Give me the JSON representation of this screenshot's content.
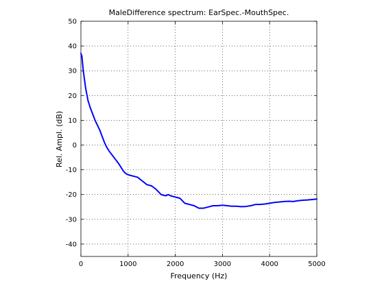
{
  "chart_data": {
    "type": "line",
    "title": "MaleDifference spectrum: EarSpec.-MouthSpec.",
    "xlabel": "Frequency (Hz)",
    "ylabel": "Rel. Ampl. (dB)",
    "xlim": [
      0,
      5000
    ],
    "ylim": [
      -45,
      50
    ],
    "xticks": [
      0,
      1000,
      2000,
      3000,
      4000,
      5000
    ],
    "yticks": [
      -40,
      -30,
      -20,
      -10,
      0,
      10,
      20,
      30,
      40,
      50
    ],
    "grid": true,
    "line_color": "#0000ff",
    "series": [
      {
        "x": [
          0,
          20,
          50,
          100,
          150,
          200,
          250,
          300,
          400,
          500,
          550,
          600,
          700,
          800,
          900,
          950,
          1000,
          1100,
          1200,
          1300,
          1400,
          1500,
          1600,
          1700,
          1800,
          1850,
          1900,
          2000,
          2100,
          2200,
          2300,
          2400,
          2500,
          2600,
          2700,
          2800,
          2900,
          3000,
          3100,
          3200,
          3300,
          3400,
          3500,
          3600,
          3700,
          3800,
          3900,
          4000,
          4100,
          4200,
          4300,
          4400,
          4500,
          4600,
          4700,
          4800,
          4900,
          5000
        ],
        "y": [
          37,
          36,
          30,
          23,
          18,
          15,
          12.5,
          10,
          6,
          1,
          -1,
          -2.5,
          -5,
          -7.5,
          -10.5,
          -11.5,
          -12,
          -12.5,
          -13,
          -14.5,
          -16,
          -16.5,
          -18,
          -20,
          -20.5,
          -20,
          -20.5,
          -21,
          -21.5,
          -23.5,
          -24,
          -24.5,
          -25.5,
          -25.5,
          -25,
          -24.5,
          -24.5,
          -24.3,
          -24.5,
          -24.7,
          -24.7,
          -24.9,
          -24.8,
          -24.5,
          -24,
          -24,
          -23.8,
          -23.5,
          -23.2,
          -23,
          -22.8,
          -22.7,
          -22.8,
          -22.5,
          -22.3,
          -22.2,
          -22,
          -21.8
        ]
      }
    ]
  }
}
